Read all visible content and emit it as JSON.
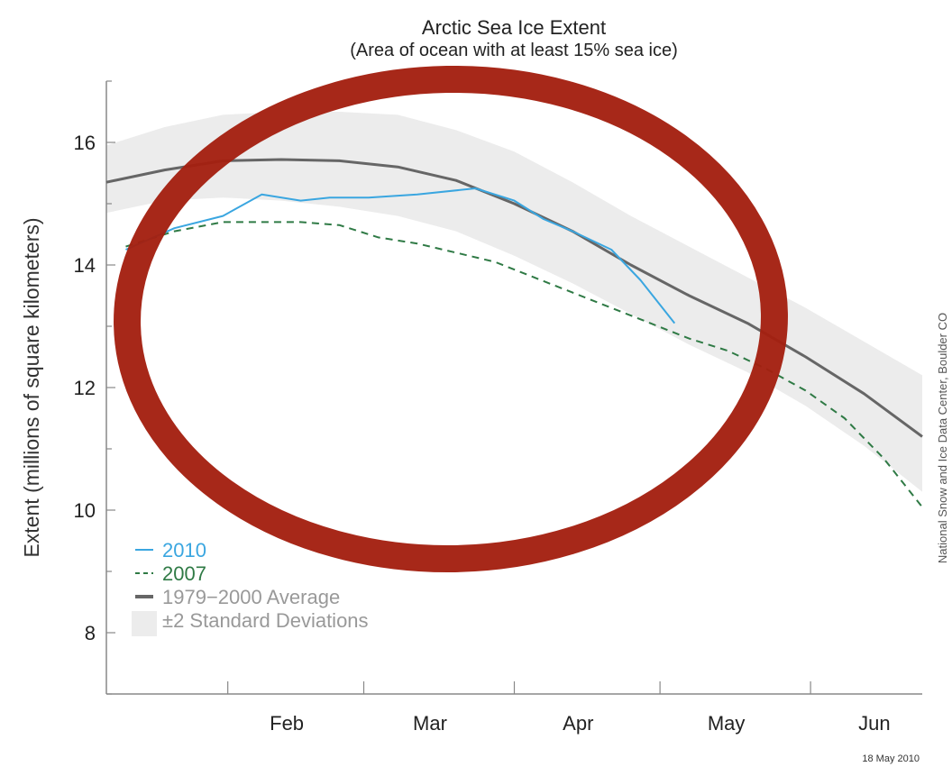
{
  "chart_data": {
    "type": "line",
    "title": "Arctic Sea Ice Extent",
    "subtitle": "(Area of ocean with at least 15% sea ice)",
    "xlabel": "",
    "ylabel": "Extent (millions of square kilometers)",
    "x_tick_labels": [
      "Feb",
      "Mar",
      "Apr",
      "May",
      "Jun"
    ],
    "x_tick_days": [
      1,
      29,
      60,
      90,
      121
    ],
    "xlim": [
      -24,
      144
    ],
    "ylim": [
      7,
      17
    ],
    "y_ticks": [
      8,
      10,
      12,
      14,
      16
    ],
    "grid": false,
    "legend_position": "bottom-left",
    "credit": "National Snow and Ice Data Center, Boulder CO",
    "date_stamp": "18 May 2010",
    "colors": {
      "2010": "#3aa6e0",
      "2007": "#2f7a45",
      "average": "#666666",
      "std_band": "#ececec",
      "highlight_ring": "#a31f10"
    },
    "legend": [
      {
        "label": "2010",
        "color": "#3aa6e0",
        "style": "solid"
      },
      {
        "label": "2007",
        "color": "#2f7a45",
        "style": "dashed"
      },
      {
        "label": "1979−2000 Average",
        "color": "#666666",
        "style": "solid-thick"
      },
      {
        "label": "±2 Standard Deviations",
        "color": "#ececec",
        "style": "band"
      }
    ],
    "series": [
      {
        "name": "1979−2000 Average",
        "x": [
          -24,
          -12,
          0,
          12,
          24,
          36,
          48,
          60,
          72,
          84,
          96,
          108,
          120,
          132,
          144
        ],
        "y": [
          15.35,
          15.55,
          15.7,
          15.72,
          15.7,
          15.6,
          15.38,
          15.0,
          14.55,
          14.0,
          13.5,
          13.05,
          12.5,
          11.9,
          11.2
        ]
      },
      {
        "name": "2010",
        "x": [
          -20,
          -10,
          0,
          8,
          16,
          22,
          30,
          40,
          52,
          60,
          66,
          72,
          80,
          86,
          93
        ],
        "y": [
          14.25,
          14.6,
          14.8,
          15.15,
          15.05,
          15.1,
          15.1,
          15.15,
          15.25,
          15.05,
          14.75,
          14.55,
          14.25,
          13.75,
          13.05
        ]
      },
      {
        "name": "2007",
        "x": [
          -20,
          -10,
          0,
          8,
          16,
          24,
          32,
          40,
          48,
          56,
          64,
          72,
          80,
          88,
          96,
          104,
          112,
          120,
          128,
          136,
          144
        ],
        "y": [
          14.3,
          14.55,
          14.7,
          14.7,
          14.7,
          14.65,
          14.45,
          14.35,
          14.2,
          14.05,
          13.8,
          13.55,
          13.3,
          13.05,
          12.8,
          12.6,
          12.3,
          11.95,
          11.5,
          10.85,
          10.05
        ]
      },
      {
        "name": "±2 Standard Deviations",
        "x": [
          -24,
          -12,
          0,
          12,
          24,
          36,
          48,
          60,
          72,
          84,
          96,
          108,
          120,
          132,
          144
        ],
        "upper": [
          15.95,
          16.25,
          16.45,
          16.5,
          16.5,
          16.45,
          16.2,
          15.85,
          15.35,
          14.8,
          14.3,
          13.8,
          13.3,
          12.75,
          12.2
        ],
        "lower": [
          14.85,
          15.05,
          15.1,
          15.05,
          14.95,
          14.8,
          14.55,
          14.15,
          13.7,
          13.2,
          12.7,
          12.25,
          11.7,
          11.05,
          10.3
        ]
      }
    ]
  }
}
